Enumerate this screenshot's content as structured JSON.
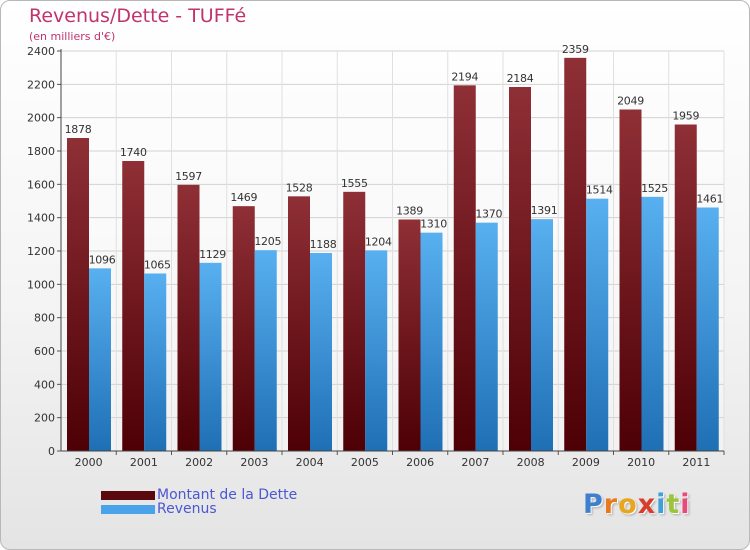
{
  "header": {
    "title": "Revenus/Dette - TUFFé",
    "subtitle": "(en milliers d'€)"
  },
  "chart_data": {
    "type": "bar",
    "title": "Revenus/Dette - TUFFé",
    "ylabel": "(en milliers d'€)",
    "xlabel": "",
    "ylim": [
      0,
      2400
    ],
    "yticks": [
      0,
      200,
      400,
      600,
      800,
      1000,
      1200,
      1400,
      1600,
      1800,
      2000,
      2200,
      2400
    ],
    "grid": true,
    "legend_position": "bottom-left",
    "categories": [
      "2000",
      "2001",
      "2002",
      "2003",
      "2004",
      "2005",
      "2006",
      "2007",
      "2008",
      "2009",
      "2010",
      "2011"
    ],
    "series": [
      {
        "name": "Montant de la Dette",
        "color": "#7a1a1f",
        "values": [
          1878,
          1740,
          1597,
          1469,
          1528,
          1555,
          1389,
          2194,
          2184,
          2359,
          2049,
          1959
        ]
      },
      {
        "name": "Revenus",
        "color": "#4aa3e8",
        "values": [
          1096,
          1065,
          1129,
          1205,
          1188,
          1204,
          1310,
          1370,
          1391,
          1514,
          1525,
          1461
        ]
      }
    ]
  },
  "legend": {
    "items": [
      {
        "label": "Montant de la Dette",
        "color": "#5a0a0e"
      },
      {
        "label": "Revenus",
        "color": "#4aa3e8"
      }
    ]
  },
  "logo": {
    "text": "Proxiti",
    "letter_colors": [
      "#3f7fd0",
      "#e87a1e",
      "#e8a61e",
      "#d83c2a",
      "#3f9fd8",
      "#9bc53d",
      "#e84a7a"
    ]
  }
}
